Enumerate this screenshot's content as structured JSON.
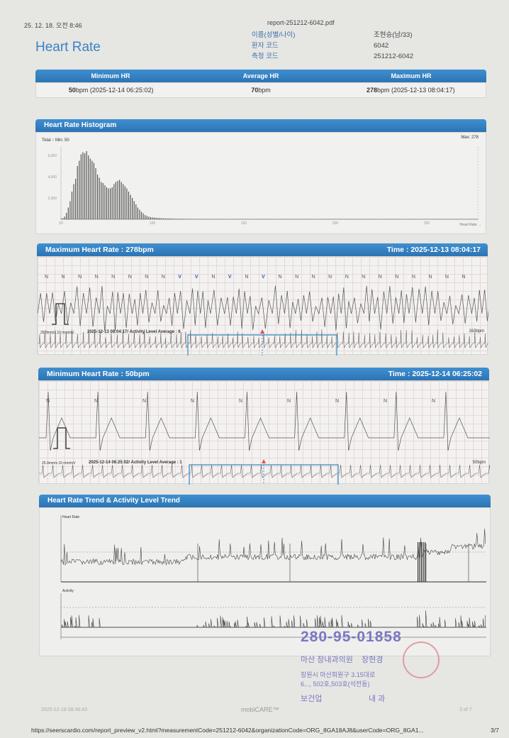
{
  "browser": {
    "print_datetime": "25. 12. 18. 오전 8:46",
    "file_name": "report-251212-6042.pdf",
    "url": "https://seerscardio.com/report_preview_v2.html?measurementCode=251212-6042&organizationCode=ORG_8GA18AJ8&userCode=ORG_8GA1...",
    "page": "3/7"
  },
  "title": "Heart Rate",
  "patient": {
    "fields": [
      {
        "label": "이름(성별/나이)",
        "value": "조현승(남/33)"
      },
      {
        "label": "환자 코드",
        "value": "6042"
      },
      {
        "label": "측정 코드",
        "value": "251212-6042"
      }
    ]
  },
  "summary": {
    "headers": [
      "Minimum HR",
      "Average HR",
      "Maximum HR"
    ],
    "min": {
      "value": "50",
      "unit": "bpm",
      "time": " (2025-12-14 06:25:02)"
    },
    "avg": {
      "value": "70",
      "unit": "bpm"
    },
    "max": {
      "value": "278",
      "unit": "bpm",
      "time": " (2025-12-13 08:04:17)"
    }
  },
  "histogram": {
    "title": "Heart Rate Histogram",
    "top_left": "Total  ↑ Min: 50",
    "top_right": "Max: 278"
  },
  "chart_data": {
    "type": "bar",
    "title": "Heart Rate Histogram",
    "xlabel": "Heart Rate →",
    "ylabel": "",
    "x_ticks": [
      "50",
      "100",
      "150",
      "200",
      "250"
    ],
    "y_ticks": [
      "2,000",
      "4,000",
      "6,000"
    ],
    "xlim": [
      50,
      278
    ],
    "ylim": [
      0,
      7000
    ],
    "x_start": 50,
    "values": [
      50,
      100,
      250,
      600,
      1100,
      1700,
      2600,
      3300,
      3800,
      5000,
      5500,
      6100,
      6300,
      6200,
      6400,
      6000,
      5700,
      5500,
      5300,
      4800,
      4200,
      3900,
      3500,
      3400,
      3200,
      3000,
      2900,
      2900,
      3000,
      3300,
      3500,
      3600,
      3700,
      3500,
      3300,
      3100,
      2900,
      2600,
      2300,
      2000,
      1700,
      1400,
      1100,
      900,
      700,
      550,
      400,
      300,
      250,
      200,
      180,
      160,
      140,
      120,
      110,
      100,
      90,
      85,
      80,
      75,
      70,
      65,
      60,
      55,
      50,
      50,
      45,
      45,
      40,
      40,
      40,
      35,
      35,
      35,
      30,
      30,
      30,
      30,
      30,
      30,
      30
    ],
    "tail": {
      "from": 131,
      "to": 278,
      "value": 25
    }
  },
  "max_strip": {
    "title": "Maximum Heart Rate : 278bpm",
    "time": "Time : 2025-12-13 08:04:17",
    "beats": [
      "N",
      "N",
      "N",
      "N",
      "N",
      "N",
      "N",
      "N",
      "V",
      "V",
      "N",
      "V",
      "N",
      "V",
      "N",
      "N",
      "N",
      "N",
      "N",
      "N",
      "N",
      "N",
      "N",
      "N",
      "N",
      "N"
    ],
    "scale": "25.0mm/s  10 mm/mV",
    "caption": "2025-12-13 08:04:17/ Activity Level Average : 6",
    "rate": "163bpm"
  },
  "min_strip": {
    "title": "Minimum Heart Rate : 50bpm",
    "time": "Time : 2025-12-14 06:25:02",
    "beats": [
      "N",
      "N",
      "N",
      "N",
      "N",
      "N",
      "N",
      "N",
      "N"
    ],
    "scale": "25.0mm/s  10 mm/mV",
    "caption": "2025-12-14 06:25:02/ Activity Level Average : 1",
    "rate": "50bpm"
  },
  "trend": {
    "title": "Heart Rate Trend & Activity Level Trend",
    "hr_label": "Heart Rate",
    "activity_label": "Activity"
  },
  "stamp": {
    "reg_no": "280-95-01858",
    "clinic": "마산 장내과의원",
    "doctor": "장현경",
    "address1": "창원시 마산회원구 3.15대로",
    "address2": "6..., 502호,503호(석전동)",
    "business": "보건업",
    "category": "내 과"
  },
  "footer": {
    "datetime": "2025-12-18 08:46:43",
    "brand": "mobiCARE™",
    "page": "3 of 7"
  },
  "colors": {
    "accent": "#2f7cbf",
    "title": "#3b82c4",
    "stamp": "#7a78c4",
    "seal": "#d9747a"
  }
}
